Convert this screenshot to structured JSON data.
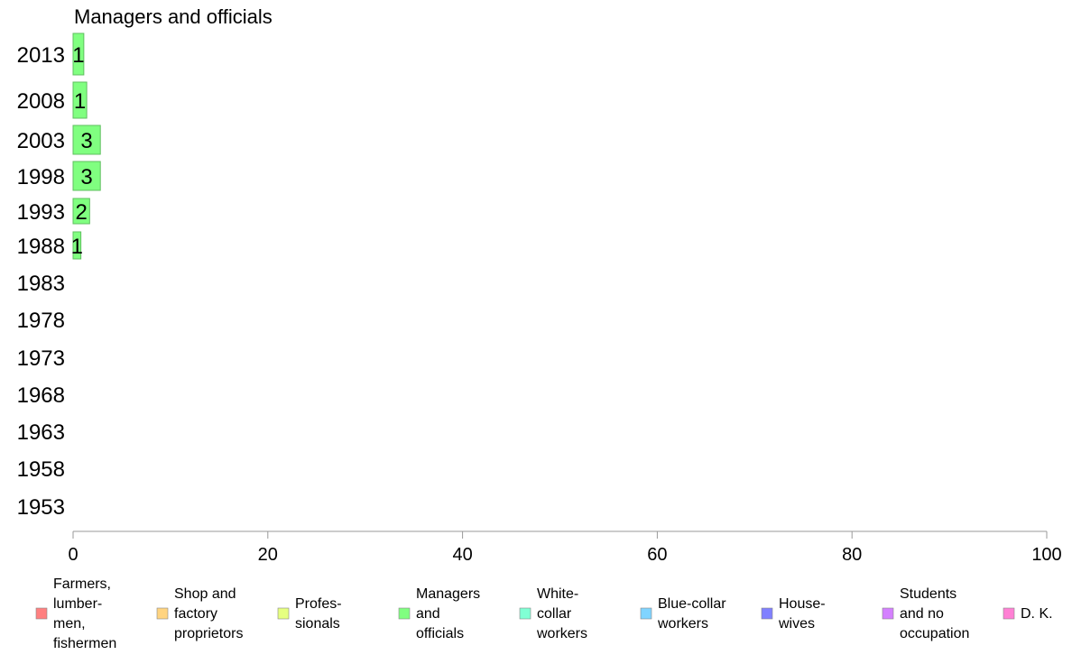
{
  "chart_data": {
    "type": "bar",
    "orientation": "horizontal",
    "title": "Managers and officials",
    "categories": [
      "2013",
      "2008",
      "2003",
      "1998",
      "1993",
      "1988",
      "1983",
      "1978",
      "1973",
      "1968",
      "1963",
      "1958",
      "1953"
    ],
    "values": [
      1.1,
      1.4,
      2.8,
      2.8,
      1.7,
      0.8,
      null,
      null,
      null,
      null,
      null,
      null,
      null
    ],
    "data_labels": [
      "1",
      "1",
      "3",
      "3",
      "2",
      "1",
      "",
      "",
      "",
      "",
      "",
      "",
      ""
    ],
    "xlim": [
      0,
      100
    ],
    "xticks": [
      "0",
      "20",
      "40",
      "60",
      "80",
      "100"
    ],
    "grid": false,
    "legend_position": "bottom",
    "bar_color": "#80FF80",
    "legend": [
      {
        "label": [
          "Farmers,",
          "lumber-",
          "men,",
          "fishermen"
        ],
        "color": "#FF8080"
      },
      {
        "label": [
          "Shop and",
          "factory",
          "proprietors"
        ],
        "color": "#FFD480"
      },
      {
        "label": [
          "Profes-",
          "sionals"
        ],
        "color": "#E6FF80"
      },
      {
        "label": [
          "Managers",
          "and",
          "officials"
        ],
        "color": "#80FF80"
      },
      {
        "label": [
          "White-",
          "collar",
          "workers"
        ],
        "color": "#80FFD4"
      },
      {
        "label": [
          "Blue-collar",
          "workers"
        ],
        "color": "#80D4FF"
      },
      {
        "label": [
          "House-",
          "wives"
        ],
        "color": "#8080FF"
      },
      {
        "label": [
          "Students",
          "and no",
          "occupation"
        ],
        "color": "#D480FF"
      },
      {
        "label": [
          "D. K."
        ],
        "color": "#FF80D4"
      }
    ]
  }
}
